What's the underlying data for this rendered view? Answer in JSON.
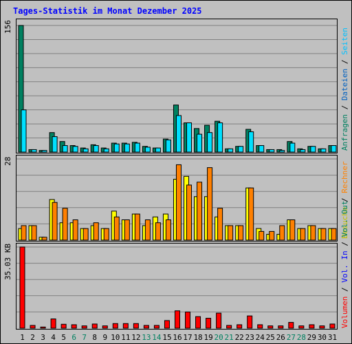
{
  "chart_data": {
    "type": "bar",
    "title": "Tages-Statistik im Monat Dezember 2025",
    "categories": [
      "1",
      "2",
      "3",
      "4",
      "5",
      "6",
      "7",
      "8",
      "9",
      "10",
      "11",
      "12",
      "13",
      "14",
      "15",
      "16",
      "17",
      "18",
      "19",
      "20",
      "21",
      "22",
      "23",
      "24",
      "25",
      "26",
      "27",
      "28",
      "29",
      "30",
      "31"
    ],
    "weekend_days": [
      "6",
      "7",
      "13",
      "14",
      "20",
      "21",
      "27",
      "28"
    ],
    "colors": {
      "anfragen": "#008060",
      "dateien": "#00c0ff",
      "seiten": "#00e0ff",
      "besuche": "#ffff00",
      "rechner": "#ff8000",
      "volumen": "#ff0000",
      "weekend_label": "#008060",
      "title": "#0000ff",
      "grid": "#808080",
      "background": "#c0c0c0"
    },
    "panels": [
      {
        "id": "requests",
        "ymax_label": "156",
        "ymax": 156,
        "right_labels": [
          {
            "text": "Anfragen",
            "color": "#008060"
          },
          {
            "text": " / ",
            "color": "#000000"
          },
          {
            "text": "Dateien",
            "color": "#0060c0"
          },
          {
            "text": " / ",
            "color": "#000000"
          },
          {
            "text": "Seiten",
            "color": "#00c0ff"
          }
        ],
        "series": [
          {
            "name": "Anfragen",
            "color": "#008060",
            "values": [
              156,
              3,
              2,
              24,
              13,
              8,
              5,
              9,
              5,
              11,
              11,
              12,
              7,
              5,
              16,
              58,
              36,
              29,
              33,
              38,
              4,
              7,
              28,
              8,
              3,
              3,
              13,
              4,
              7,
              4,
              8
            ]
          },
          {
            "name": "Dateien",
            "color": "#00e0ff",
            "values": [
              52,
              3,
              2,
              19,
              8,
              7,
              4,
              8,
              4,
              10,
              10,
              11,
              6,
              5,
              15,
              45,
              36,
              22,
              24,
              36,
              4,
              7,
              25,
              8,
              3,
              2,
              11,
              3,
              7,
              4,
              8
            ]
          }
        ]
      },
      {
        "id": "visits",
        "ymax_label": "28",
        "ymax": 28,
        "right_labels": [
          {
            "text": "Besuche",
            "color": "#c0c000"
          },
          {
            "text": " / ",
            "color": "#000000"
          },
          {
            "text": "Rechner",
            "color": "#ff8000"
          }
        ],
        "series": [
          {
            "name": "Besuche",
            "color": "#ffff00",
            "values": [
              4,
              5,
              1,
              14,
              6,
              6,
              4,
              5,
              4,
              10,
              7,
              9,
              5,
              8,
              9,
              21,
              22,
              15,
              15,
              8,
              5,
              5,
              18,
              4,
              2,
              2,
              7,
              4,
              5,
              4,
              4
            ]
          },
          {
            "name": "Rechner",
            "color": "#ff8000",
            "values": [
              5,
              5,
              1,
              13,
              11,
              7,
              4,
              6,
              4,
              8,
              7,
              9,
              7,
              6,
              7,
              26,
              19,
              20,
              25,
              11,
              5,
              5,
              18,
              3,
              3,
              5,
              7,
              4,
              5,
              4,
              4
            ]
          }
        ]
      },
      {
        "id": "volume",
        "ymax_label": "35.03 KB",
        "ymax": 35.03,
        "right_labels": [
          {
            "text": "Volumen",
            "color": "#ff0000"
          },
          {
            "text": " / ",
            "color": "#000000"
          },
          {
            "text": "Vol. In",
            "color": "#0000ff"
          },
          {
            "text": " / ",
            "color": "#000000"
          },
          {
            "text": "Vol. Out",
            "color": "#008060"
          }
        ],
        "series": [
          {
            "name": "Volumen",
            "color": "#ff0000",
            "values": [
              35.03,
              1.2,
              0.5,
              4.0,
              1.7,
              1.5,
              1.0,
              1.8,
              1.0,
              2.0,
              2.0,
              2.0,
              1.2,
              1.2,
              3.3,
              7.5,
              7.0,
              5.0,
              4.3,
              6.5,
              1.2,
              1.5,
              5.3,
              1.5,
              1.0,
              1.0,
              2.5,
              1.0,
              1.5,
              1.0,
              1.8
            ]
          }
        ]
      }
    ]
  }
}
